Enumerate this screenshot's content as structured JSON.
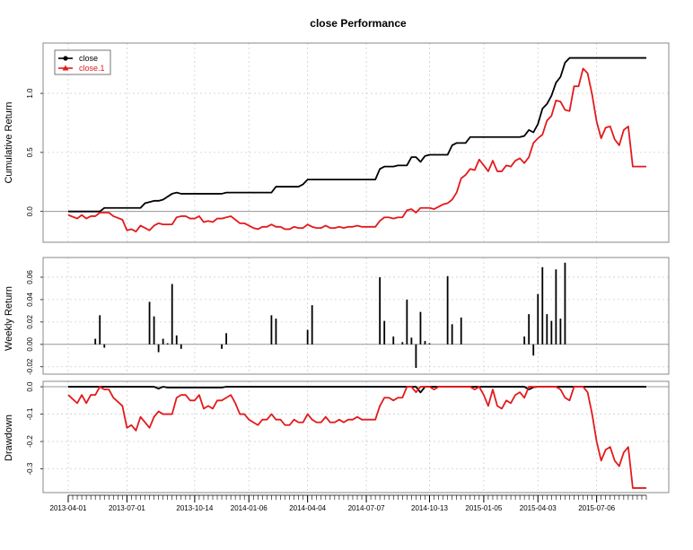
{
  "chart_data": {
    "title": "close Performance",
    "type": "line",
    "x_tick_labels": [
      "2013-04-01",
      "2013-07-01",
      "2013-10-14",
      "2014-01-06",
      "2014-04-04",
      "2014-07-07",
      "2014-10-13",
      "2015-01-05",
      "2015-04-03",
      "2015-07-06"
    ],
    "x_tick_positions": [
      0,
      13,
      28,
      40,
      53,
      66,
      80,
      92,
      104,
      117
    ],
    "n_periods": 128,
    "colors": {
      "close": "#000000",
      "close.1": "#e31a1c"
    },
    "grid": true,
    "legend_position": "top-left",
    "panels": [
      {
        "name": "cumulative-return",
        "ylabel": "Cumulative Return",
        "ylim": [
          -0.2,
          1.35
        ],
        "yticks": [
          0.0,
          0.5,
          1.0
        ],
        "ytick_labels": [
          "0.0",
          "0.5",
          "1.0"
        ],
        "legend": [
          "close",
          "close.1"
        ],
        "series": [
          {
            "name": "close",
            "x": [
              0,
              7,
              8,
              16,
              17,
              19,
              20,
              21,
              23,
              24,
              25,
              34,
              35,
              45,
              46,
              51,
              52,
              53,
              54,
              68,
              69,
              70,
              72,
              73,
              75,
              76,
              77,
              78,
              79,
              80,
              84,
              85,
              86,
              88,
              89,
              100,
              101,
              102,
              103,
              104,
              105,
              106,
              107,
              108,
              109,
              110,
              111,
              128
            ],
            "y": [
              0.0,
              0.0,
              0.03,
              0.03,
              0.07,
              0.09,
              0.09,
              0.1,
              0.15,
              0.16,
              0.15,
              0.15,
              0.16,
              0.16,
              0.21,
              0.21,
              0.23,
              0.27,
              0.27,
              0.27,
              0.36,
              0.38,
              0.38,
              0.39,
              0.39,
              0.46,
              0.46,
              0.42,
              0.47,
              0.48,
              0.48,
              0.56,
              0.58,
              0.58,
              0.63,
              0.63,
              0.64,
              0.69,
              0.67,
              0.74,
              0.87,
              0.91,
              0.98,
              1.09,
              1.14,
              1.26,
              1.3,
              1.3
            ]
          },
          {
            "name": "close.1",
            "x": [
              0,
              2,
              3,
              4,
              5,
              6,
              7,
              8,
              9,
              10,
              12,
              13,
              14,
              15,
              16,
              17,
              18,
              19,
              20,
              21,
              22,
              23,
              24,
              25,
              26,
              27,
              28,
              29,
              30,
              31,
              32,
              33,
              34,
              35,
              36,
              37,
              38,
              39,
              40,
              41,
              42,
              43,
              44,
              45,
              46,
              47,
              48,
              49,
              50,
              51,
              52,
              53,
              54,
              55,
              56,
              57,
              58,
              59,
              60,
              61,
              62,
              63,
              64,
              65,
              66,
              67,
              68,
              69,
              70,
              71,
              72,
              73,
              74,
              75,
              76,
              77,
              78,
              79,
              80,
              81,
              82,
              83,
              84,
              85,
              86,
              87,
              88,
              89,
              90,
              91,
              92,
              93,
              94,
              95,
              96,
              97,
              98,
              99,
              100,
              101,
              102,
              103,
              104,
              105,
              106,
              107,
              108,
              109,
              110,
              111,
              112,
              113,
              114,
              115,
              116,
              117,
              118,
              119,
              120,
              121,
              122,
              123,
              124,
              125,
              126,
              127,
              128
            ],
            "y": [
              -0.03,
              -0.06,
              -0.03,
              -0.06,
              -0.04,
              -0.04,
              -0.01,
              -0.01,
              -0.01,
              -0.04,
              -0.07,
              -0.16,
              -0.15,
              -0.17,
              -0.12,
              -0.14,
              -0.16,
              -0.12,
              -0.1,
              -0.11,
              -0.11,
              -0.11,
              -0.05,
              -0.04,
              -0.04,
              -0.06,
              -0.06,
              -0.04,
              -0.09,
              -0.08,
              -0.09,
              -0.06,
              -0.06,
              -0.05,
              -0.04,
              -0.07,
              -0.1,
              -0.1,
              -0.12,
              -0.14,
              -0.15,
              -0.13,
              -0.13,
              -0.11,
              -0.13,
              -0.13,
              -0.15,
              -0.15,
              -0.13,
              -0.14,
              -0.14,
              -0.11,
              -0.13,
              -0.14,
              -0.14,
              -0.12,
              -0.14,
              -0.14,
              -0.13,
              -0.14,
              -0.13,
              -0.13,
              -0.12,
              -0.13,
              -0.13,
              -0.13,
              -0.13,
              -0.08,
              -0.05,
              -0.05,
              -0.06,
              -0.05,
              -0.05,
              0.01,
              0.02,
              -0.01,
              0.03,
              0.03,
              0.03,
              0.02,
              0.04,
              0.06,
              0.07,
              0.1,
              0.16,
              0.28,
              0.31,
              0.36,
              0.35,
              0.44,
              0.39,
              0.34,
              0.43,
              0.34,
              0.34,
              0.39,
              0.38,
              0.43,
              0.45,
              0.41,
              0.46,
              0.58,
              0.62,
              0.65,
              0.77,
              0.81,
              0.94,
              0.93,
              0.86,
              0.85,
              1.06,
              1.06,
              1.21,
              1.17,
              0.99,
              0.76,
              0.62,
              0.71,
              0.72,
              0.61,
              0.56,
              0.69,
              0.72,
              0.38,
              0.38,
              0.38,
              0.38
            ]
          }
        ]
      },
      {
        "name": "weekly-return",
        "ylabel": "Weekly Return",
        "ylim": [
          -0.025,
          0.076
        ],
        "yticks": [
          -0.02,
          0.0,
          0.02,
          0.04,
          0.06
        ],
        "ytick_labels": [
          "-0.02",
          "0.00",
          "0.02",
          "0.04",
          "0.06"
        ],
        "bars": {
          "series": "close",
          "x": [
            6,
            7,
            8,
            18,
            19,
            20,
            21,
            22,
            23,
            24,
            25,
            34,
            35,
            45,
            46,
            53,
            54,
            69,
            70,
            72,
            74,
            75,
            76,
            77,
            78,
            79,
            80,
            84,
            85,
            87,
            101,
            102,
            103,
            104,
            105,
            106,
            107,
            108,
            109,
            110
          ],
          "y": [
            0.005,
            0.026,
            -0.003,
            0.038,
            0.025,
            -0.007,
            0.005,
            0.001,
            0.054,
            0.008,
            -0.004,
            -0.004,
            0.01,
            0.026,
            0.023,
            0.013,
            0.035,
            0.06,
            0.021,
            0.007,
            0.002,
            0.04,
            0.006,
            -0.021,
            0.029,
            0.003,
            0.001,
            0.061,
            0.018,
            0.024,
            0.007,
            0.027,
            -0.01,
            0.045,
            0.069,
            0.027,
            0.021,
            0.067,
            0.023,
            0.073
          ]
        }
      },
      {
        "name": "drawdown",
        "ylabel": "Drawdown",
        "ylim": [
          -0.38,
          0.01
        ],
        "yticks": [
          -0.3,
          -0.2,
          -0.1,
          0.0
        ],
        "ytick_labels": [
          "-0.3",
          "-0.2",
          "-0.1",
          "0.0"
        ],
        "series": [
          {
            "name": "close",
            "x": [
              0,
              19,
              20,
              21,
              22,
              25,
              34,
              35,
              77,
              78,
              79,
              101,
              102,
              103,
              104,
              128
            ],
            "y": [
              0.0,
              0.0,
              -0.007,
              0.0,
              -0.003,
              -0.003,
              -0.003,
              0.0,
              0.0,
              -0.021,
              0.0,
              0.0,
              -0.01,
              -0.002,
              0.0,
              0.0
            ]
          },
          {
            "name": "close.1",
            "x": [
              0,
              2,
              3,
              4,
              5,
              6,
              7,
              8,
              9,
              10,
              12,
              13,
              14,
              15,
              16,
              17,
              18,
              19,
              20,
              21,
              22,
              23,
              24,
              25,
              26,
              27,
              28,
              29,
              30,
              31,
              32,
              33,
              34,
              35,
              36,
              37,
              38,
              39,
              40,
              41,
              42,
              43,
              44,
              45,
              46,
              47,
              48,
              49,
              50,
              51,
              52,
              53,
              54,
              55,
              56,
              57,
              58,
              59,
              60,
              61,
              62,
              63,
              64,
              65,
              66,
              67,
              68,
              69,
              70,
              71,
              72,
              73,
              74,
              75,
              76,
              77,
              78,
              79,
              80,
              81,
              82,
              83,
              84,
              85,
              86,
              87,
              88,
              89,
              90,
              91,
              92,
              93,
              94,
              95,
              96,
              97,
              98,
              99,
              100,
              101,
              102,
              103,
              104,
              105,
              106,
              107,
              108,
              109,
              110,
              111,
              112,
              113,
              114,
              115,
              116,
              117,
              118,
              119,
              120,
              121,
              122,
              123,
              124,
              125,
              126,
              127,
              128
            ],
            "y": [
              -0.03,
              -0.06,
              -0.03,
              -0.06,
              -0.03,
              -0.03,
              0.0,
              -0.01,
              -0.01,
              -0.04,
              -0.07,
              -0.15,
              -0.14,
              -0.16,
              -0.11,
              -0.13,
              -0.15,
              -0.11,
              -0.09,
              -0.1,
              -0.1,
              -0.1,
              -0.04,
              -0.03,
              -0.03,
              -0.05,
              -0.05,
              -0.03,
              -0.08,
              -0.07,
              -0.08,
              -0.05,
              -0.05,
              -0.04,
              -0.03,
              -0.06,
              -0.1,
              -0.1,
              -0.12,
              -0.13,
              -0.14,
              -0.12,
              -0.12,
              -0.1,
              -0.12,
              -0.12,
              -0.14,
              -0.14,
              -0.12,
              -0.13,
              -0.13,
              -0.1,
              -0.12,
              -0.13,
              -0.13,
              -0.11,
              -0.13,
              -0.13,
              -0.12,
              -0.13,
              -0.12,
              -0.12,
              -0.11,
              -0.12,
              -0.12,
              -0.12,
              -0.12,
              -0.07,
              -0.04,
              -0.04,
              -0.05,
              -0.04,
              -0.04,
              0.0,
              0.0,
              -0.02,
              0.0,
              0.0,
              0.0,
              -0.01,
              0.0,
              0.0,
              0.0,
              0.0,
              0.0,
              0.0,
              0.0,
              0.0,
              -0.01,
              0.0,
              -0.03,
              -0.07,
              -0.01,
              -0.07,
              -0.08,
              -0.05,
              -0.06,
              -0.03,
              -0.02,
              -0.04,
              0.0,
              0.0,
              0.0,
              0.0,
              0.0,
              0.0,
              0.0,
              -0.01,
              -0.04,
              -0.05,
              0.0,
              0.0,
              0.0,
              -0.02,
              -0.1,
              -0.2,
              -0.27,
              -0.23,
              -0.22,
              -0.27,
              -0.29,
              -0.24,
              -0.22,
              -0.37,
              -0.37,
              -0.37,
              -0.37
            ]
          }
        ]
      }
    ]
  }
}
